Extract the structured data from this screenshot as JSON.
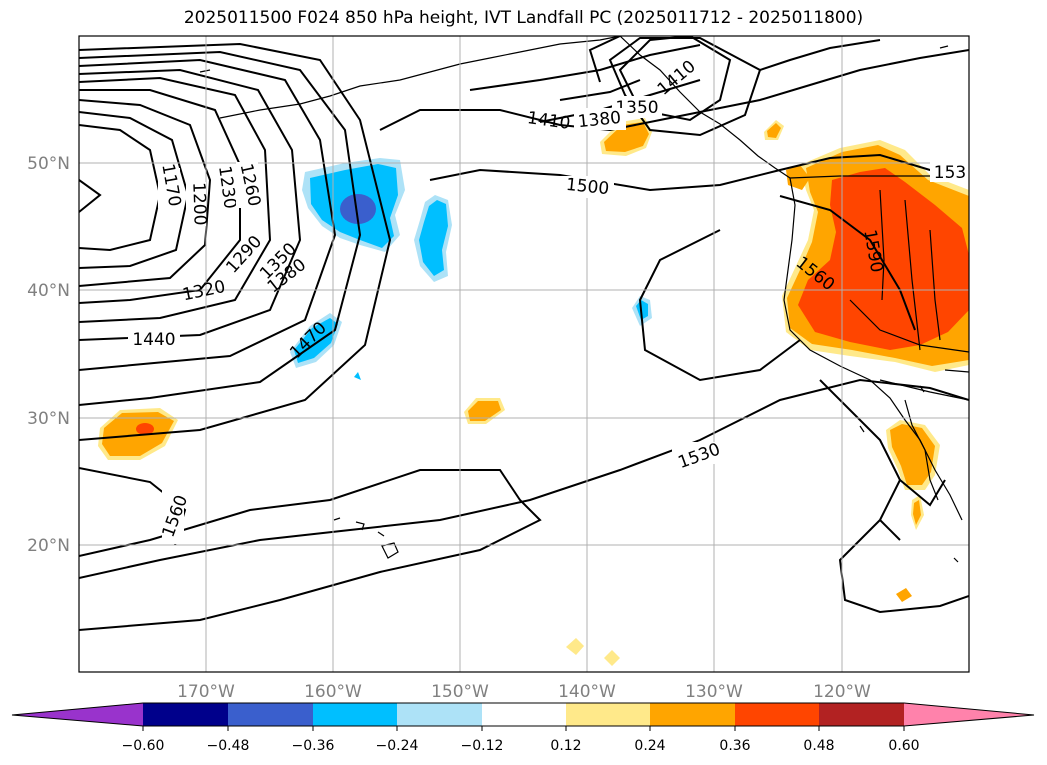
{
  "title": "2025011500 F024 850 hPa height, IVT Landfall PC (2025011712 - 2025011800)",
  "map": {
    "lon_ticks": [
      "170°W",
      "160°W",
      "150°W",
      "140°W",
      "130°W",
      "120°W"
    ],
    "lat_ticks": [
      "50°N",
      "40°N",
      "30°N",
      "20°N"
    ],
    "contour_labels": [
      "1170",
      "1200",
      "1230",
      "1260",
      "1290",
      "1320",
      "1350",
      "1380",
      "1410",
      "1440",
      "1470",
      "1500",
      "1530",
      "1560",
      "1590",
      "1350",
      "1380",
      "1410",
      "153",
      "1560"
    ]
  },
  "colorbar": {
    "ticks": [
      "−0.60",
      "−0.48",
      "−0.36",
      "−0.24",
      "−0.12",
      "0.12",
      "0.24",
      "0.36",
      "0.48",
      "0.60"
    ],
    "colors": [
      "#9933cc",
      "#00008b",
      "#3a5fcd",
      "#00bfff",
      "#ade2f7",
      "#ffffff",
      "#ffe98a",
      "#ffa500",
      "#ff4500",
      "#b22222",
      "#ff82ab"
    ]
  }
}
